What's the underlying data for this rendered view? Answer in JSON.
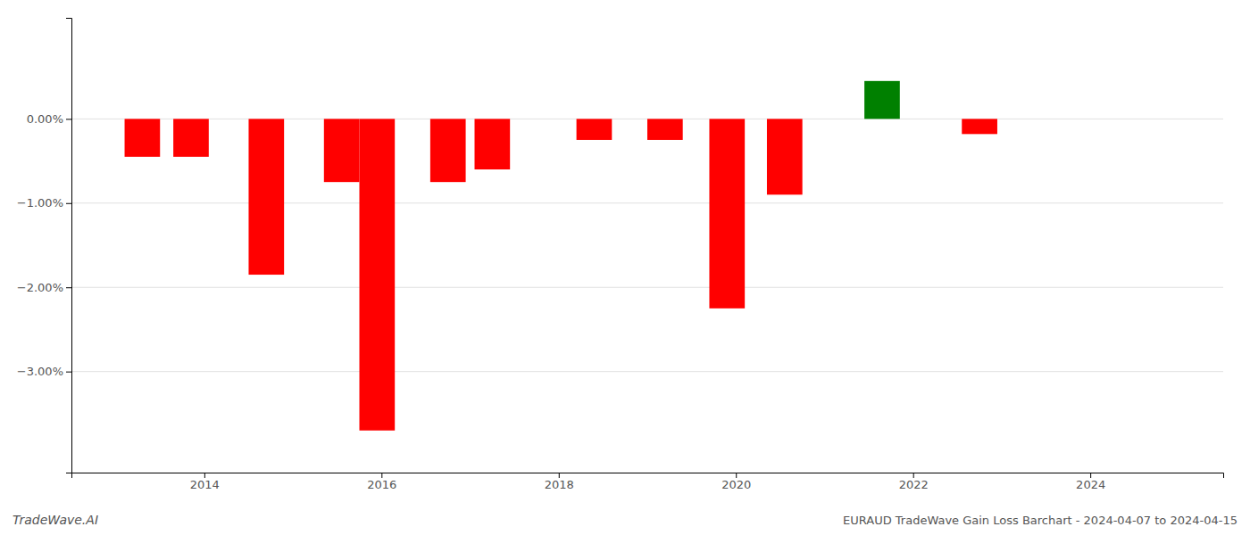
{
  "chart_data": {
    "type": "bar",
    "x": [
      2013.3,
      2013.85,
      2014.7,
      2015.55,
      2015.95,
      2016.75,
      2017.25,
      2018.4,
      2019.2,
      2019.9,
      2020.55,
      2021.65,
      2022.75
    ],
    "values": [
      -0.0045,
      -0.0045,
      -0.0185,
      -0.0075,
      -0.037,
      -0.0075,
      -0.006,
      -0.0025,
      -0.0025,
      -0.0225,
      -0.009,
      0.0045,
      -0.0018
    ],
    "colors": [
      "#ff0000",
      "#ff0000",
      "#ff0000",
      "#ff0000",
      "#ff0000",
      "#ff0000",
      "#ff0000",
      "#ff0000",
      "#ff0000",
      "#ff0000",
      "#ff0000",
      "#008000",
      "#ff0000"
    ],
    "xlim": [
      2012.5,
      2025.5
    ],
    "ylim": [
      -0.042,
      0.012
    ],
    "xticks": [
      2014,
      2016,
      2018,
      2020,
      2022,
      2024
    ],
    "yticks": [
      {
        "value": 0.0,
        "label": "0.00%"
      },
      {
        "value": -0.01,
        "label": "−1.00%"
      },
      {
        "value": -0.02,
        "label": "−2.00%"
      },
      {
        "value": -0.03,
        "label": "−3.00%"
      }
    ],
    "grid": true,
    "annotations": [
      "TradeWave.AI",
      "EURAUD TradeWave Gain Loss Barchart - 2024-04-07 to 2024-04-15"
    ]
  }
}
